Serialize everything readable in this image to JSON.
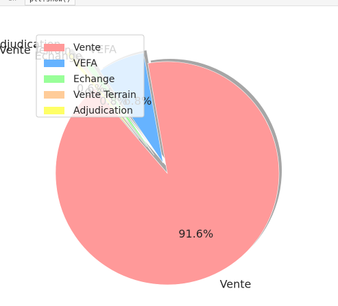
{
  "cell": {
    "line_number": "In",
    "code": "plt.show()"
  },
  "chart_data": {
    "type": "pie",
    "categories": [
      "Vente",
      "VEFA",
      "Echange",
      "Vente Terrain",
      "Adjudication"
    ],
    "values": [
      91.6,
      6.8,
      0.8,
      0.3,
      0.6
    ],
    "autopct_labels": [
      "91.6%",
      "6.8%",
      "0.8%",
      "0.3%",
      "0.6%"
    ],
    "colors": [
      "#ff9999",
      "#66b3ff",
      "#99ff99",
      "#ffcc99",
      "#ffff66"
    ],
    "explode": [
      0,
      0.1,
      0.2,
      0.3,
      0.4
    ],
    "shadow": true,
    "legend_position": "top-left",
    "legend": [
      "Vente",
      "VEFA",
      "Echange",
      "Vente Terrain",
      "Adjudication"
    ]
  }
}
